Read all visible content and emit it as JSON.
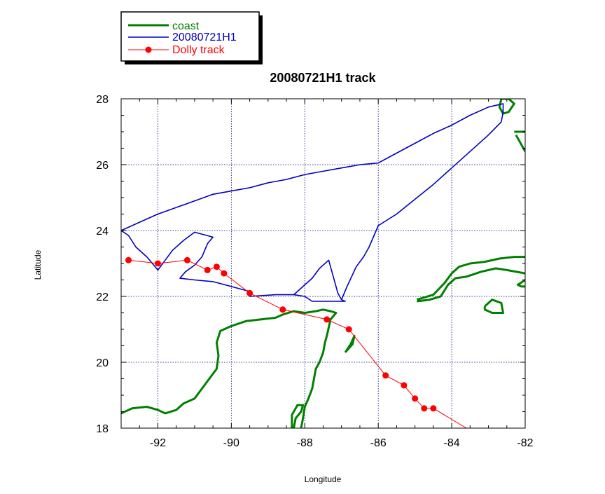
{
  "chart_data": {
    "type": "line",
    "title": "20080721H1 track",
    "xlabel": "Longitude",
    "ylabel": "Latitude",
    "xlim": [
      -93,
      -82
    ],
    "ylim": [
      18,
      28
    ],
    "xticks": [
      -92,
      -90,
      -88,
      -86,
      -84,
      -82
    ],
    "yticks": [
      18,
      20,
      22,
      24,
      26,
      28
    ],
    "xtick_labels": [
      "-92",
      "-90",
      "-88",
      "-86",
      "-84",
      "-82"
    ],
    "ytick_labels": [
      "18",
      "20",
      "22",
      "24",
      "26",
      "28"
    ],
    "grid": true,
    "legend_position": "top-left, outside plot",
    "legend": [
      {
        "label": "coast",
        "color": "#008000",
        "style": "thick-line"
      },
      {
        "label": "20080721H1",
        "color": "#0000c0",
        "style": "line"
      },
      {
        "label": "Dolly track",
        "color": "#ff0000",
        "style": "line-markers"
      }
    ],
    "series": [
      {
        "name": "coast",
        "color": "#008000",
        "segments": [
          [
            [
              -93.0,
              18.45
            ],
            [
              -92.7,
              18.6
            ],
            [
              -92.3,
              18.65
            ],
            [
              -92.0,
              18.55
            ],
            [
              -91.8,
              18.45
            ],
            [
              -91.5,
              18.55
            ],
            [
              -91.3,
              18.75
            ],
            [
              -91.0,
              18.9
            ],
            [
              -90.8,
              19.2
            ],
            [
              -90.6,
              19.5
            ],
            [
              -90.4,
              19.8
            ],
            [
              -90.35,
              20.2
            ],
            [
              -90.4,
              20.6
            ],
            [
              -90.3,
              20.95
            ],
            [
              -90.0,
              21.1
            ],
            [
              -89.6,
              21.25
            ],
            [
              -89.2,
              21.3
            ],
            [
              -88.8,
              21.35
            ],
            [
              -88.6,
              21.45
            ],
            [
              -88.3,
              21.55
            ],
            [
              -88.0,
              21.5
            ],
            [
              -87.7,
              21.55
            ],
            [
              -87.5,
              21.6
            ],
            [
              -87.3,
              21.55
            ],
            [
              -87.15,
              21.5
            ],
            [
              -87.3,
              21.3
            ],
            [
              -87.35,
              21.05
            ],
            [
              -87.4,
              20.8
            ],
            [
              -87.45,
              20.6
            ],
            [
              -87.5,
              20.3
            ],
            [
              -87.6,
              20.0
            ],
            [
              -87.7,
              19.8
            ],
            [
              -87.75,
              19.5
            ],
            [
              -87.8,
              19.2
            ],
            [
              -87.9,
              18.9
            ],
            [
              -88.0,
              18.65
            ],
            [
              -88.05,
              18.3
            ],
            [
              -88.1,
              18.0
            ]
          ],
          [
            [
              -88.3,
              18.0
            ],
            [
              -88.25,
              18.3
            ],
            [
              -88.1,
              18.5
            ],
            [
              -88.05,
              18.7
            ],
            [
              -88.2,
              18.7
            ],
            [
              -88.35,
              18.4
            ],
            [
              -88.35,
              18.0
            ]
          ],
          [
            [
              -86.9,
              20.3
            ],
            [
              -86.75,
              20.55
            ],
            [
              -86.65,
              20.8
            ],
            [
              -86.7,
              20.55
            ],
            [
              -86.9,
              20.3
            ]
          ],
          [
            [
              -84.95,
              21.85
            ],
            [
              -84.6,
              21.9
            ],
            [
              -84.3,
              22.0
            ],
            [
              -84.1,
              22.35
            ],
            [
              -83.9,
              22.55
            ],
            [
              -83.6,
              22.6
            ],
            [
              -83.2,
              22.75
            ],
            [
              -82.8,
              22.85
            ],
            [
              -82.5,
              22.8
            ],
            [
              -82.0,
              22.7
            ]
          ],
          [
            [
              -84.95,
              21.9
            ],
            [
              -84.5,
              22.05
            ],
            [
              -84.2,
              22.4
            ],
            [
              -84.0,
              22.7
            ],
            [
              -83.8,
              22.9
            ],
            [
              -83.5,
              23.0
            ],
            [
              -83.1,
              23.05
            ],
            [
              -82.7,
              23.15
            ],
            [
              -82.3,
              23.2
            ],
            [
              -82.0,
              23.2
            ]
          ],
          [
            [
              -82.0,
              22.5
            ],
            [
              -82.2,
              22.35
            ],
            [
              -82.1,
              22.3
            ],
            [
              -82.0,
              22.3
            ]
          ],
          [
            [
              -83.1,
              21.7
            ],
            [
              -82.9,
              21.9
            ],
            [
              -82.65,
              21.8
            ],
            [
              -82.6,
              21.5
            ],
            [
              -82.9,
              21.5
            ],
            [
              -83.1,
              21.6
            ],
            [
              -83.1,
              21.7
            ]
          ],
          [
            [
              -82.65,
              28.0
            ],
            [
              -82.7,
              27.75
            ],
            [
              -82.6,
              27.55
            ],
            [
              -82.45,
              27.6
            ],
            [
              -82.3,
              27.85
            ],
            [
              -82.45,
              28.0
            ],
            [
              -82.65,
              28.0
            ]
          ],
          [
            [
              -82.25,
              26.9
            ],
            [
              -82.1,
              26.6
            ],
            [
              -82.0,
              26.4
            ]
          ],
          [
            [
              -82.3,
              27.0
            ],
            [
              -82.0,
              27.0
            ]
          ]
        ]
      },
      {
        "name": "20080721H1",
        "color": "#0000c0",
        "points": [
          [
            -93.0,
            24.0
          ],
          [
            -92.3,
            24.35
          ],
          [
            -92.0,
            24.5
          ],
          [
            -91.5,
            24.7
          ],
          [
            -91.0,
            24.9
          ],
          [
            -90.5,
            25.1
          ],
          [
            -90.0,
            25.2
          ],
          [
            -89.5,
            25.3
          ],
          [
            -89.0,
            25.45
          ],
          [
            -88.5,
            25.55
          ],
          [
            -88.0,
            25.7
          ],
          [
            -87.5,
            25.8
          ],
          [
            -87.0,
            25.9
          ],
          [
            -86.5,
            26.0
          ],
          [
            -86.0,
            26.05
          ],
          [
            -85.5,
            26.35
          ],
          [
            -85.0,
            26.65
          ],
          [
            -84.5,
            26.95
          ],
          [
            -84.0,
            27.2
          ],
          [
            -83.5,
            27.5
          ],
          [
            -83.0,
            27.75
          ],
          [
            -82.6,
            27.85
          ],
          [
            -82.6,
            27.6
          ],
          [
            -82.65,
            27.3
          ],
          [
            -83.0,
            26.9
          ],
          [
            -83.5,
            26.4
          ],
          [
            -84.0,
            25.9
          ],
          [
            -84.5,
            25.4
          ],
          [
            -85.0,
            24.95
          ],
          [
            -85.5,
            24.5
          ],
          [
            -86.0,
            24.15
          ],
          [
            -86.25,
            23.5
          ],
          [
            -86.4,
            23.2
          ],
          [
            -86.6,
            22.9
          ],
          [
            -86.85,
            22.3
          ],
          [
            -87.0,
            21.9
          ],
          [
            -86.9,
            21.85
          ],
          [
            -87.5,
            21.85
          ],
          [
            -87.8,
            21.85
          ],
          [
            -88.0,
            22.0
          ],
          [
            -88.3,
            22.05
          ],
          [
            -88.8,
            22.05
          ],
          [
            -89.5,
            22.0
          ],
          [
            -89.5,
            22.15
          ],
          [
            -90.0,
            22.3
          ],
          [
            -90.5,
            22.45
          ],
          [
            -91.0,
            22.5
          ],
          [
            -91.4,
            22.55
          ],
          [
            -91.25,
            22.75
          ],
          [
            -91.0,
            22.95
          ],
          [
            -90.8,
            23.2
          ],
          [
            -90.65,
            23.6
          ],
          [
            -90.5,
            23.8
          ],
          [
            -91.0,
            23.95
          ],
          [
            -91.3,
            23.7
          ],
          [
            -91.6,
            23.4
          ],
          [
            -91.8,
            23.1
          ],
          [
            -92.0,
            22.8
          ],
          [
            -92.3,
            23.2
          ],
          [
            -92.6,
            23.5
          ],
          [
            -92.8,
            23.85
          ],
          [
            -93.0,
            24.0
          ]
        ],
        "loop": [
          [
            -88.3,
            22.05
          ],
          [
            -87.8,
            22.55
          ],
          [
            -87.6,
            22.85
          ],
          [
            -87.35,
            23.1
          ],
          [
            -87.1,
            22.1
          ],
          [
            -87.0,
            21.9
          ]
        ]
      },
      {
        "name": "Dolly track",
        "color": "#ff0000",
        "x": [
          -92.8,
          -92.0,
          -91.2,
          -90.65,
          -90.4,
          -90.2,
          -89.5,
          -88.6,
          -87.4,
          -86.8,
          -85.8,
          -85.3,
          -85.0,
          -84.75,
          -84.5,
          -83.6
        ],
        "y": [
          23.1,
          23.0,
          23.1,
          22.8,
          22.9,
          22.7,
          22.1,
          21.6,
          21.3,
          21.0,
          19.6,
          19.3,
          18.9,
          18.6,
          18.6,
          18.0
        ],
        "markers": [
          true,
          true,
          true,
          true,
          true,
          true,
          true,
          true,
          true,
          true,
          true,
          true,
          true,
          true,
          true,
          false
        ]
      }
    ]
  }
}
